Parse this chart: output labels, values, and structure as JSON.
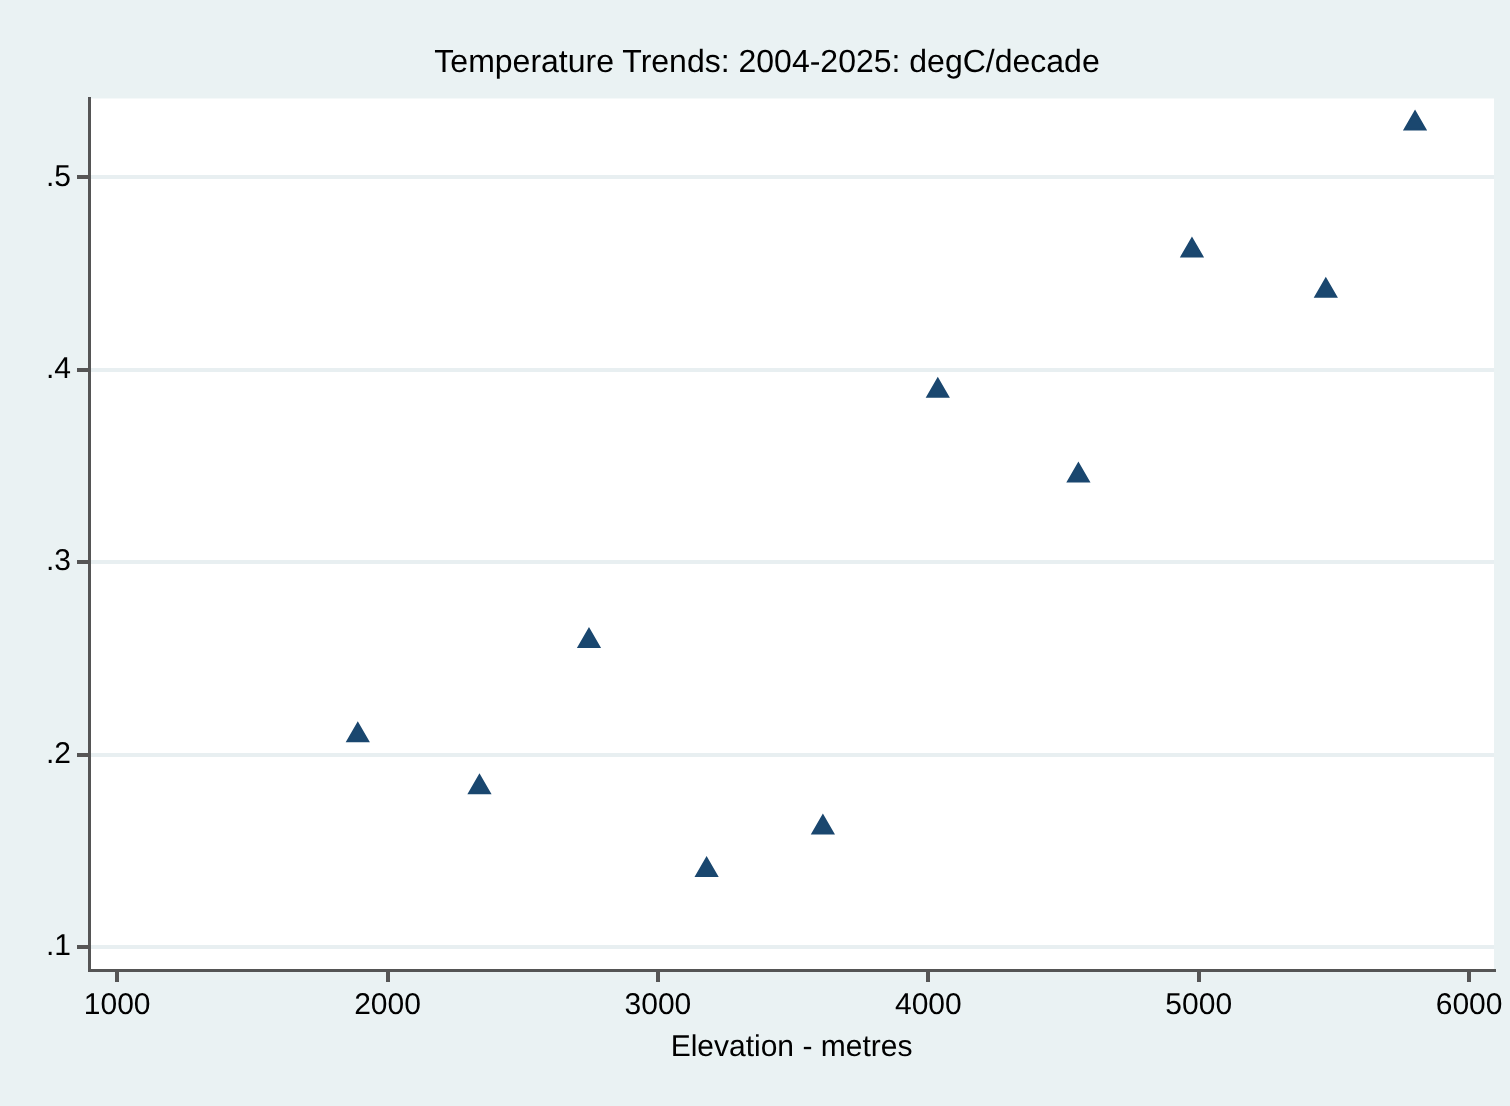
{
  "chart_data": {
    "type": "scatter",
    "title": "Temperature Trends: 2004-2025: degC/decade",
    "xlabel": "Elevation - metres",
    "x": [
      1890,
      2340,
      2745,
      3180,
      3610,
      4035,
      4555,
      4975,
      5470,
      5800
    ],
    "series": [
      {
        "color": "#1a476f",
        "values": [
          0.21,
          0.183,
          0.259,
          0.14,
          0.162,
          0.389,
          0.345,
          0.462,
          0.441,
          0.528
        ]
      }
    ],
    "xlim": [
      896,
      6092
    ],
    "xticks": [
      1000,
      2000,
      3000,
      4000,
      5000,
      6000
    ],
    "ylim": [
      0.088,
      0.541
    ],
    "yticks": [
      {
        "value": 0.1,
        "label": ".1"
      },
      {
        "value": 0.2,
        "label": ".2"
      },
      {
        "value": 0.3,
        "label": ".3"
      },
      {
        "value": 0.4,
        "label": ".4"
      },
      {
        "value": 0.5,
        "label": ".5"
      }
    ],
    "grid": "y",
    "legend": false,
    "marker": "triangle"
  }
}
